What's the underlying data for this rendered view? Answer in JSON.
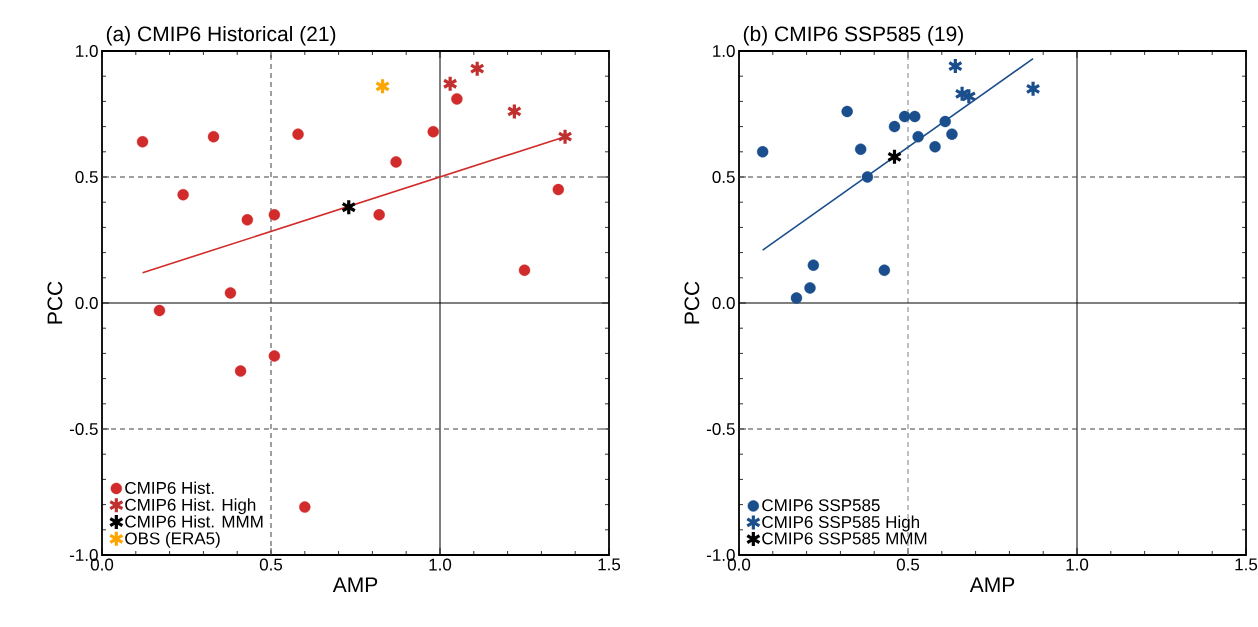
{
  "chart_data": [
    {
      "type": "scatter",
      "title": "(a) CMIP6 Historical (21)",
      "xlabel": "AMP",
      "ylabel": "PCC",
      "xlim": [
        0,
        1.5
      ],
      "ylim": [
        -1,
        1
      ],
      "xticks": [
        {
          "value": 0,
          "label": "0.0"
        },
        {
          "value": 0.5,
          "label": "0.5"
        },
        {
          "value": 1,
          "label": "1.0"
        },
        {
          "value": 1.5,
          "label": "1.5"
        }
      ],
      "yticks": [
        {
          "value": -1,
          "label": "-1.0"
        },
        {
          "value": -0.5,
          "label": "-0.5"
        },
        {
          "value": 0,
          "label": "0.0"
        },
        {
          "value": 0.5,
          "label": "0.5"
        },
        {
          "value": 1,
          "label": "1.0"
        }
      ],
      "legend": "bottom left",
      "ref_lines": [
        {
          "axis": "x",
          "value": 0.5,
          "line_style": "dashed",
          "color": "#404040"
        },
        {
          "axis": "x",
          "value": 1.0,
          "line_style": "solid",
          "color": "#000000"
        },
        {
          "axis": "y",
          "value": 0.5,
          "line_style": "dashed",
          "color": "#404040"
        },
        {
          "axis": "y",
          "value": -0.5,
          "line_style": "dashed",
          "color": "#404040"
        },
        {
          "axis": "y",
          "value": 0,
          "line_style": "solid",
          "color": "#000000"
        }
      ],
      "series": [
        {
          "type": "line",
          "color": "#d22b2b",
          "x": [
            0.12,
            1.37
          ],
          "values": [
            0.12,
            0.66
          ]
        },
        {
          "name": "CMIP6 Hist.",
          "marker": "circle",
          "color": "#d22b2b",
          "x": [
            0.12,
            0.33,
            0.58,
            0.98,
            1.05,
            0.87,
            0.24,
            0.43,
            0.51,
            0.82,
            1.35,
            1.25,
            0.38,
            0.17,
            0.41,
            0.51,
            0.6
          ],
          "values": [
            0.64,
            0.66,
            0.67,
            0.68,
            0.81,
            0.56,
            0.43,
            0.33,
            0.35,
            0.35,
            0.45,
            0.13,
            0.04,
            -0.03,
            -0.27,
            -0.21,
            -0.81
          ]
        },
        {
          "name": "CMIP6 Hist. High",
          "marker": "cross",
          "color": "#c0302f",
          "x": [
            1.03,
            1.11,
            1.22,
            1.37
          ],
          "values": [
            0.87,
            0.93,
            0.76,
            0.66
          ]
        },
        {
          "name": "CMIP6 Hist. MMM",
          "marker": "cross",
          "color": "#000000",
          "x": [
            0.73
          ],
          "values": [
            0.38
          ]
        },
        {
          "name": "OBS (ERA5)",
          "marker": "cross",
          "color": "#ffa500",
          "x": [
            0.83
          ],
          "values": [
            0.86
          ]
        }
      ]
    },
    {
      "type": "scatter",
      "title": "(b) CMIP6 SSP585 (19)",
      "xlabel": "AMP",
      "ylabel": "PCC",
      "xlim": [
        0,
        1.5
      ],
      "ylim": [
        -1,
        1
      ],
      "xticks": [
        {
          "value": 0,
          "label": "0.0"
        },
        {
          "value": 0.5,
          "label": "0.5"
        },
        {
          "value": 1,
          "label": "1.0"
        },
        {
          "value": 1.5,
          "label": "1.5"
        }
      ],
      "yticks": [
        {
          "value": -1,
          "label": "-1.0"
        },
        {
          "value": -0.5,
          "label": "-0.5"
        },
        {
          "value": 0,
          "label": "0.0"
        },
        {
          "value": 0.5,
          "label": "0.5"
        },
        {
          "value": 1,
          "label": "1.0"
        }
      ],
      "legend": "bottom left",
      "ref_lines": [
        {
          "axis": "x",
          "value": 0.5,
          "line_style": "dashed",
          "color": "#808080"
        },
        {
          "axis": "x",
          "value": 1.0,
          "line_style": "solid",
          "color": "#000000"
        },
        {
          "axis": "y",
          "value": 0.5,
          "line_style": "dashed",
          "color": "#404040"
        },
        {
          "axis": "y",
          "value": -0.5,
          "line_style": "dashed",
          "color": "#404040"
        },
        {
          "axis": "y",
          "value": 0,
          "line_style": "solid",
          "color": "#000000"
        }
      ],
      "series": [
        {
          "type": "line",
          "color": "#1a4e8c",
          "x": [
            0.07,
            0.87
          ],
          "values": [
            0.21,
            0.97
          ]
        },
        {
          "name": "CMIP6 SSP585",
          "marker": "circle",
          "color": "#1a4e8c",
          "x": [
            0.07,
            0.32,
            0.36,
            0.38,
            0.46,
            0.49,
            0.52,
            0.53,
            0.58,
            0.61,
            0.63,
            0.22,
            0.21,
            0.17,
            0.43
          ],
          "values": [
            0.6,
            0.76,
            0.61,
            0.5,
            0.7,
            0.74,
            0.74,
            0.66,
            0.62,
            0.72,
            0.67,
            0.15,
            0.06,
            0.02,
            0.13
          ]
        },
        {
          "name": "CMIP6 SSP585 High",
          "marker": "cross",
          "color": "#1a4e8c",
          "x": [
            0.64,
            0.66,
            0.68,
            0.87
          ],
          "values": [
            0.94,
            0.83,
            0.82,
            0.85
          ]
        },
        {
          "name": "CMIP6 SSP585 MMM",
          "marker": "cross",
          "color": "#000000",
          "x": [
            0.46
          ],
          "values": [
            0.58
          ]
        }
      ]
    }
  ]
}
